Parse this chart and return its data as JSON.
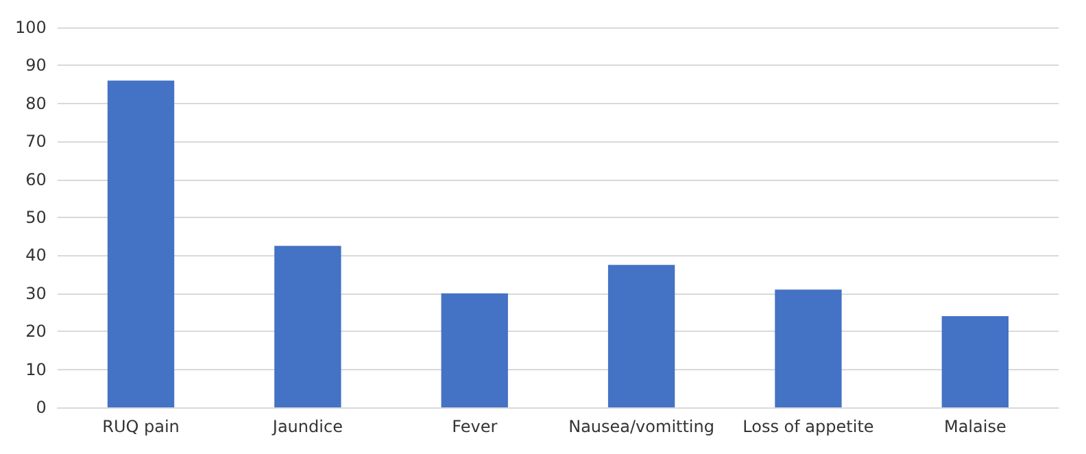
{
  "chart_data": {
    "type": "bar",
    "categories": [
      "RUQ pain",
      "Jaundice",
      "Fever",
      "Nausea/vomitting",
      "Loss of appetite",
      "Malaise"
    ],
    "values": [
      86,
      42.5,
      30,
      37.5,
      31,
      24
    ],
    "color": "#4472c4",
    "ylim": [
      0,
      100
    ],
    "yticks": [
      0,
      10,
      20,
      30,
      40,
      50,
      60,
      70,
      80,
      90,
      100
    ],
    "grid": "y"
  }
}
